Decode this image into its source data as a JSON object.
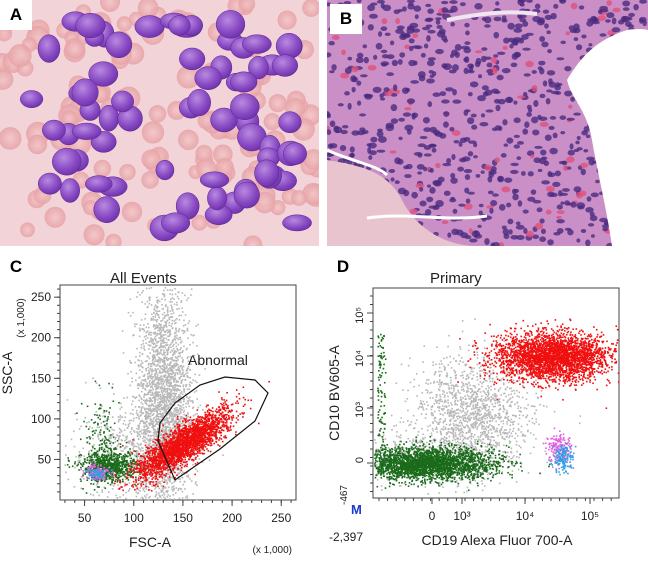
{
  "panels": {
    "a": {
      "letter": "A"
    },
    "b": {
      "letter": "B"
    },
    "c": {
      "letter": "C",
      "title": "All Events",
      "gate_label": "Abnormal",
      "y_axis_label": "SSC-A",
      "y_multiplier": "(x 1,000)",
      "x_axis_label": "FSC-A",
      "x_multiplier": "(x 1,000)",
      "y_ticks": [
        "250",
        "200",
        "150",
        "100",
        "50"
      ],
      "x_ticks": [
        "50",
        "100",
        "150",
        "200",
        "250"
      ]
    },
    "d": {
      "letter": "D",
      "title": "Primary",
      "y_axis_label": "CD10 BV605-A",
      "x_axis_label": "CD19 Alexa Fluor 700-A",
      "y_min_label": "-467",
      "x_min_label": "-2,397",
      "corner_marker": "M",
      "y_ticks": [
        "10⁵",
        "10⁴",
        "10³",
        "0"
      ],
      "x_ticks": [
        "0",
        "10³",
        "10⁴",
        "10⁵"
      ]
    }
  },
  "colors": {
    "abnormal_population": "#f01010",
    "lymphocytes": "#1a6b1a",
    "background_events": "#b8b8b8",
    "bcells_magenta": "#e060e0",
    "bcells_cyan": "#30a0e0"
  }
}
